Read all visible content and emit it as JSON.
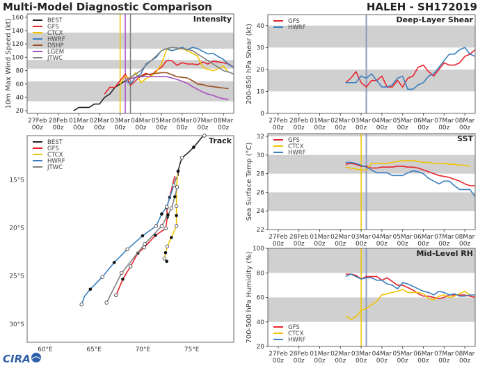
{
  "header": {
    "title": "Multi-Model Diagnostic Comparison",
    "storm": "HALEH - SH172019"
  },
  "logo": "CIRA",
  "colors": {
    "BEST": "#222222",
    "GFS": "#e8222a",
    "CTCX": "#f2c200",
    "HWRF": "#3a7fc1",
    "DSHP": "#9a4e1e",
    "LGEM": "#a64fc0",
    "JTWC": "#808080",
    "now": "#8a9cc4",
    "band": "#d0d0d0"
  },
  "chart_data": [
    {
      "type": "line",
      "title": "Intensity",
      "ylabel": "10m Max Wind Speed (kt)",
      "ylim": [
        16,
        165
      ],
      "yticks": [
        20,
        40,
        60,
        80,
        100,
        120,
        140,
        160
      ],
      "xticks": [
        [
          "27Feb",
          "00z"
        ],
        [
          "28Feb",
          "00z"
        ],
        [
          "01Mar",
          "00z"
        ],
        [
          "02Mar",
          "00z"
        ],
        [
          "03Mar",
          "00z"
        ],
        [
          "04Mar",
          "00z"
        ],
        [
          "05Mar",
          "00z"
        ],
        [
          "06Mar",
          "00z"
        ],
        [
          "07Mar",
          "00z"
        ],
        [
          "08Mar",
          "00z"
        ]
      ],
      "bands": [
        [
          34,
          64
        ],
        [
          83,
          96
        ],
        [
          113,
          137
        ]
      ],
      "vlines": [
        {
          "time": "03Mar 00z",
          "model": "CTCX"
        },
        {
          "time": "03Mar 06z",
          "model": "LGEM"
        },
        {
          "time": "03Mar 12z",
          "model": "JTWC"
        }
      ],
      "legend": "top-left",
      "series": [
        {
          "name": "BEST",
          "start": "28Feb 18z",
          "step_hours": 6,
          "values": [
            20,
            25,
            25,
            25,
            30,
            30,
            40,
            45,
            55,
            60,
            65
          ]
        },
        {
          "name": "GFS",
          "start": "02Mar 06z",
          "step_hours": 6,
          "values": [
            45,
            55,
            55,
            65,
            75,
            58,
            65,
            72,
            76,
            73,
            80,
            85,
            95,
            95,
            88,
            92,
            90,
            90,
            89,
            93,
            90,
            94,
            93,
            92,
            90,
            85
          ]
        },
        {
          "name": "CTCX",
          "start": "03Mar 00z",
          "step_hours": 6,
          "values": [
            60,
            72,
            68,
            77,
            62,
            68,
            72,
            78,
            90,
            112,
            110,
            112,
            113,
            110,
            106,
            102,
            85,
            82,
            80,
            83,
            87,
            77
          ]
        },
        {
          "name": "HWRF",
          "start": "03Mar 06z",
          "step_hours": 6,
          "values": [
            65,
            60,
            70,
            75,
            90,
            95,
            100,
            110,
            113,
            110,
            112,
            115,
            111,
            115,
            113,
            109,
            105,
            106,
            101,
            97,
            89,
            85
          ]
        },
        {
          "name": "DSHP",
          "start": "03Mar 06z",
          "step_hours": 6,
          "values": [
            65,
            68,
            70,
            72,
            74,
            75,
            76,
            77,
            77,
            74,
            71,
            70,
            69,
            65,
            60,
            59,
            57,
            56,
            55,
            54,
            53
          ]
        },
        {
          "name": "LGEM",
          "start": "03Mar 06z",
          "step_hours": 6,
          "values": [
            65,
            68,
            70,
            71,
            71,
            71,
            71,
            71,
            71,
            69,
            67,
            64,
            61,
            56,
            52,
            48,
            45,
            43,
            40,
            38,
            37
          ]
        },
        {
          "name": "JTWC",
          "start": "03Mar 06z",
          "step_hours": 6,
          "values": [
            65,
            70,
            75,
            80,
            88,
            95,
            102,
            110,
            113,
            115,
            114,
            113,
            112,
            110,
            105,
            100,
            95,
            90,
            85,
            80,
            78,
            75
          ]
        }
      ]
    },
    {
      "type": "line",
      "title": "Deep-Layer Shear",
      "ylabel": "200-850 hPa Shear (kt)",
      "ylim": [
        0,
        45
      ],
      "yticks": [
        0,
        10,
        20,
        30,
        40
      ],
      "xticks": [
        [
          "27Feb",
          "00z"
        ],
        [
          "28Feb",
          "00z"
        ],
        [
          "01Mar",
          "00z"
        ],
        [
          "02Mar",
          "00z"
        ],
        [
          "03Mar",
          "00z"
        ],
        [
          "04Mar",
          "00z"
        ],
        [
          "05Mar",
          "00z"
        ],
        [
          "06Mar",
          "00z"
        ],
        [
          "07Mar",
          "00z"
        ],
        [
          "08Mar",
          "00z"
        ]
      ],
      "bands": [
        [
          10,
          20
        ],
        [
          30,
          40
        ]
      ],
      "vlines": [
        {
          "time": "03Mar 06z",
          "model": "now"
        }
      ],
      "legend": "top-left",
      "series": [
        {
          "name": "GFS",
          "start": "02Mar 06z",
          "step_hours": 6,
          "values": [
            14,
            16,
            19,
            14,
            12,
            15,
            15,
            17,
            12,
            12,
            15,
            12,
            16,
            17,
            21,
            22,
            19,
            17,
            20,
            23,
            22,
            22,
            23,
            26,
            27,
            29
          ]
        },
        {
          "name": "HWRF",
          "start": "02Mar 06z",
          "step_hours": 6,
          "values": [
            14,
            14,
            14,
            17,
            16,
            18,
            15,
            12,
            12,
            13,
            16,
            17,
            11,
            11,
            13,
            14,
            17,
            18,
            21,
            24,
            27,
            27,
            29,
            30,
            27,
            26,
            29
          ]
        }
      ]
    },
    {
      "type": "line",
      "title": "SST",
      "ylabel": "Sea Surface Temp (°C)",
      "ylim": [
        22,
        32.3
      ],
      "yticks": [
        22,
        24,
        26,
        28,
        30,
        32
      ],
      "xticks": [
        [
          "27Feb",
          "00z"
        ],
        [
          "28Feb",
          "00z"
        ],
        [
          "01Mar",
          "00z"
        ],
        [
          "02Mar",
          "00z"
        ],
        [
          "03Mar",
          "00z"
        ],
        [
          "04Mar",
          "00z"
        ],
        [
          "05Mar",
          "00z"
        ],
        [
          "06Mar",
          "00z"
        ],
        [
          "07Mar",
          "00z"
        ],
        [
          "08Mar",
          "00z"
        ]
      ],
      "bands": [
        [
          24,
          26
        ],
        [
          28,
          30
        ],
        [
          32,
          34
        ]
      ],
      "vlines": [
        {
          "time": "03Mar 00z",
          "model": "CTCX"
        },
        {
          "time": "03Mar 06z",
          "model": "now"
        }
      ],
      "legend": "top-left",
      "series": [
        {
          "name": "GFS",
          "start": "02Mar 06z",
          "step_hours": 6,
          "values": [
            29.0,
            29.1,
            29.0,
            28.8,
            28.8,
            28.6,
            28.6,
            28.7,
            28.7,
            28.7,
            28.8,
            28.8,
            28.7,
            28.7,
            28.6,
            28.4,
            28.2,
            28.0,
            27.8,
            27.7,
            27.6,
            27.4,
            27.2,
            26.9,
            26.7,
            26.7
          ]
        },
        {
          "name": "CTCX",
          "start": "02Mar 06z",
          "step_hours": 6,
          "values": [
            28.7,
            28.6,
            28.5,
            28.4,
            28.4,
            29.1,
            29.1,
            29.1,
            29.1,
            29.2,
            29.3,
            29.4,
            29.4,
            29.4,
            29.3,
            29.2,
            29.2,
            29.1,
            29.1,
            29.1,
            29.0,
            29.0,
            28.9,
            28.9,
            28.8
          ]
        },
        {
          "name": "HWRF",
          "start": "02Mar 06z",
          "step_hours": 6,
          "values": [
            29.2,
            29.2,
            29.1,
            28.9,
            28.7,
            28.4,
            28.1,
            28.1,
            28.1,
            27.8,
            27.8,
            27.8,
            28.1,
            28.3,
            28.2,
            28.0,
            27.5,
            27.2,
            26.9,
            27.2,
            27.2,
            26.7,
            26.3,
            26.3,
            26.3,
            25.5
          ]
        }
      ]
    },
    {
      "type": "line",
      "title": "Mid-Level RH",
      "ylabel": "700-500 hPa Humidity (%)",
      "ylim": [
        20,
        100
      ],
      "yticks": [
        20,
        40,
        60,
        80,
        100
      ],
      "xticks": [
        [
          "27Feb",
          "00z"
        ],
        [
          "28Feb",
          "00z"
        ],
        [
          "01Mar",
          "00z"
        ],
        [
          "02Mar",
          "00z"
        ],
        [
          "03Mar",
          "00z"
        ],
        [
          "04Mar",
          "00z"
        ],
        [
          "05Mar",
          "00z"
        ],
        [
          "06Mar",
          "00z"
        ],
        [
          "07Mar",
          "00z"
        ],
        [
          "08Mar",
          "00z"
        ]
      ],
      "bands": [
        [
          40,
          60
        ],
        [
          80,
          100
        ]
      ],
      "vlines": [
        {
          "time": "03Mar 00z",
          "model": "CTCX"
        },
        {
          "time": "03Mar 06z",
          "model": "now"
        }
      ],
      "legend": "bottom-left",
      "series": [
        {
          "name": "GFS",
          "start": "02Mar 06z",
          "step_hours": 6,
          "values": [
            79,
            79,
            78,
            75,
            77,
            77,
            77,
            74,
            76,
            73,
            70,
            70,
            68,
            66,
            63,
            61,
            61,
            60,
            59,
            60,
            62,
            62,
            62,
            62,
            61,
            60
          ]
        },
        {
          "name": "CTCX",
          "start": "02Mar 06z",
          "step_hours": 6,
          "values": [
            45,
            42,
            44,
            49.5,
            51,
            54,
            57,
            62,
            63,
            64,
            65,
            66.5,
            64,
            64,
            64,
            63,
            59,
            58,
            61,
            62,
            60,
            61,
            63,
            65,
            62
          ]
        },
        {
          "name": "HWRF",
          "start": "02Mar 06z",
          "step_hours": 6,
          "values": [
            77,
            79,
            77,
            75,
            76,
            76,
            74,
            74,
            71,
            70,
            67,
            72,
            71,
            69,
            67,
            65,
            64,
            62,
            65,
            64,
            62,
            63,
            61,
            61,
            62,
            62
          ]
        }
      ]
    },
    {
      "type": "scatter",
      "title": "Track",
      "xlim": [
        58.15,
        79.3
      ],
      "ylim": [
        10.4,
        31.9
      ],
      "xticks": [
        {
          "value": 60,
          "label": "60°E"
        },
        {
          "value": 65,
          "label": "65°E"
        },
        {
          "value": 70,
          "label": "70°E"
        },
        {
          "value": 75,
          "label": "75°E"
        }
      ],
      "yticks": [
        {
          "value": 15,
          "label": "15°S"
        },
        {
          "value": 20,
          "label": "20°S"
        },
        {
          "value": 25,
          "label": "25°S"
        },
        {
          "value": 30,
          "label": "30°S"
        }
      ],
      "legend": "top-left",
      "marker_key": {
        "0": "none",
        "1": "filled",
        "2": "open"
      },
      "series": [
        {
          "name": "BEST",
          "points": [
            [
              76.3,
              10.4,
              2
            ],
            [
              76.0,
              10.6,
              0
            ],
            [
              75.7,
              11.0,
              0
            ],
            [
              75.2,
              11.6,
              1
            ],
            [
              74.6,
              12.2,
              0
            ],
            [
              74.0,
              12.7,
              2
            ],
            [
              73.8,
              13.3,
              0
            ],
            [
              73.6,
              14.1,
              1
            ],
            [
              73.6,
              14.6,
              0
            ]
          ]
        },
        {
          "name": "GFS",
          "points": [
            [
              73.27,
              14.59,
              0
            ],
            [
              73.0,
              15.7,
              0
            ],
            [
              72.74,
              16.83,
              1
            ],
            [
              72.44,
              17.88,
              2
            ],
            [
              72.49,
              18.89,
              1
            ],
            [
              72.34,
              20.05,
              2
            ],
            [
              71.28,
              20.77,
              1
            ],
            [
              70.14,
              22.03,
              2
            ],
            [
              69.48,
              22.63,
              1
            ],
            [
              68.74,
              24.0,
              2
            ],
            [
              67.94,
              25.34,
              1
            ],
            [
              67.25,
              27.0,
              2
            ]
          ]
        },
        {
          "name": "CTCX",
          "points": [
            [
              73.57,
              14.44,
              0
            ],
            [
              73.43,
              15.75,
              0
            ],
            [
              73.43,
              17.73,
              2
            ],
            [
              73.43,
              18.72,
              1
            ],
            [
              73.43,
              19.8,
              2
            ],
            [
              72.91,
              21.0,
              1
            ],
            [
              72.49,
              21.93,
              2
            ],
            [
              72.32,
              22.58,
              1
            ],
            [
              72.2,
              23.19,
              2
            ],
            [
              72.44,
              23.48,
              1
            ]
          ]
        },
        {
          "name": "HWRF",
          "points": [
            [
              73.43,
              14.69,
              0
            ],
            [
              72.9,
              16.4,
              0
            ],
            [
              72.44,
              17.8,
              2
            ],
            [
              71.92,
              18.55,
              1
            ],
            [
              71.35,
              19.8,
              2
            ],
            [
              69.97,
              20.82,
              1
            ],
            [
              68.41,
              22.22,
              2
            ],
            [
              67.06,
              23.6,
              1
            ],
            [
              65.85,
              25.1,
              2
            ],
            [
              64.62,
              26.38,
              1
            ],
            [
              64.03,
              27.1,
              0
            ],
            [
              63.72,
              27.97,
              2
            ]
          ]
        },
        {
          "name": "JTWC",
          "points": [
            [
              73.46,
              14.73,
              0
            ],
            [
              73.15,
              15.56,
              2
            ],
            [
              73.5,
              15.75,
              2
            ],
            [
              73.27,
              16.76,
              1
            ],
            [
              72.91,
              17.97,
              2
            ],
            [
              72.56,
              18.65,
              1
            ],
            [
              71.92,
              19.8,
              2
            ],
            [
              70.19,
              21.67,
              2
            ],
            [
              67.82,
              24.69,
              2
            ],
            [
              66.28,
              27.78,
              2
            ]
          ]
        }
      ]
    }
  ]
}
